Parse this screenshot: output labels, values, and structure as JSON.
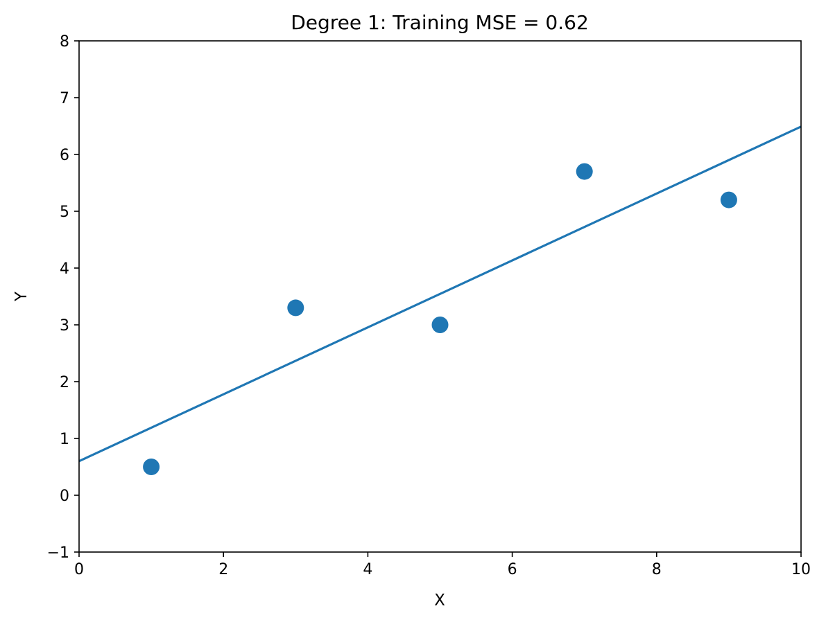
{
  "chart_data": {
    "type": "scatter",
    "title": "Degree 1: Training MSE = 0.62",
    "xlabel": "X",
    "ylabel": "Y",
    "xlim": [
      0,
      10
    ],
    "ylim": [
      -1,
      8
    ],
    "x_ticks": [
      0,
      2,
      4,
      6,
      8,
      10
    ],
    "y_ticks": [
      -1,
      0,
      1,
      2,
      3,
      4,
      5,
      6,
      7,
      8
    ],
    "x_tick_labels": [
      "0",
      "2",
      "4",
      "6",
      "8",
      "10"
    ],
    "y_tick_labels": [
      "−1",
      "0",
      "1",
      "2",
      "3",
      "4",
      "5",
      "6",
      "7",
      "8"
    ],
    "grid": false,
    "color": "#1f77b4",
    "series": [
      {
        "type": "scatter",
        "x": [
          1,
          3,
          5,
          7,
          9
        ],
        "y": [
          0.5,
          3.3,
          3.0,
          5.7,
          5.2
        ]
      },
      {
        "type": "line",
        "x": [
          0,
          10
        ],
        "y": [
          0.6,
          6.49
        ]
      }
    ]
  }
}
